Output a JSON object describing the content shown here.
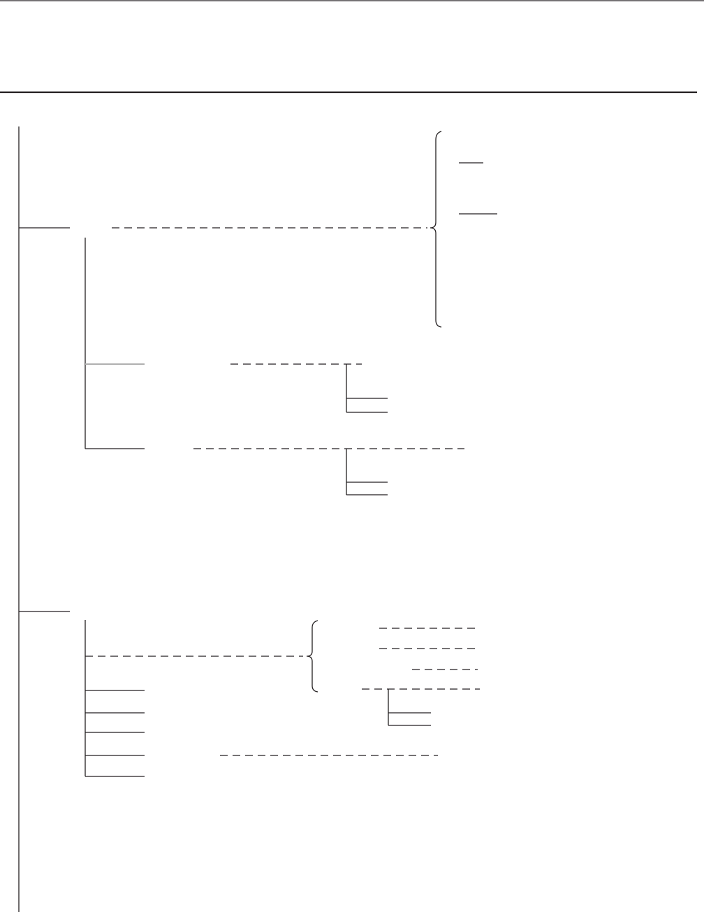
{
  "diagram": {
    "type": "tree-outline",
    "line_color": "#231f20",
    "highlight_line_color": "#b0b0b0",
    "labels": []
  }
}
